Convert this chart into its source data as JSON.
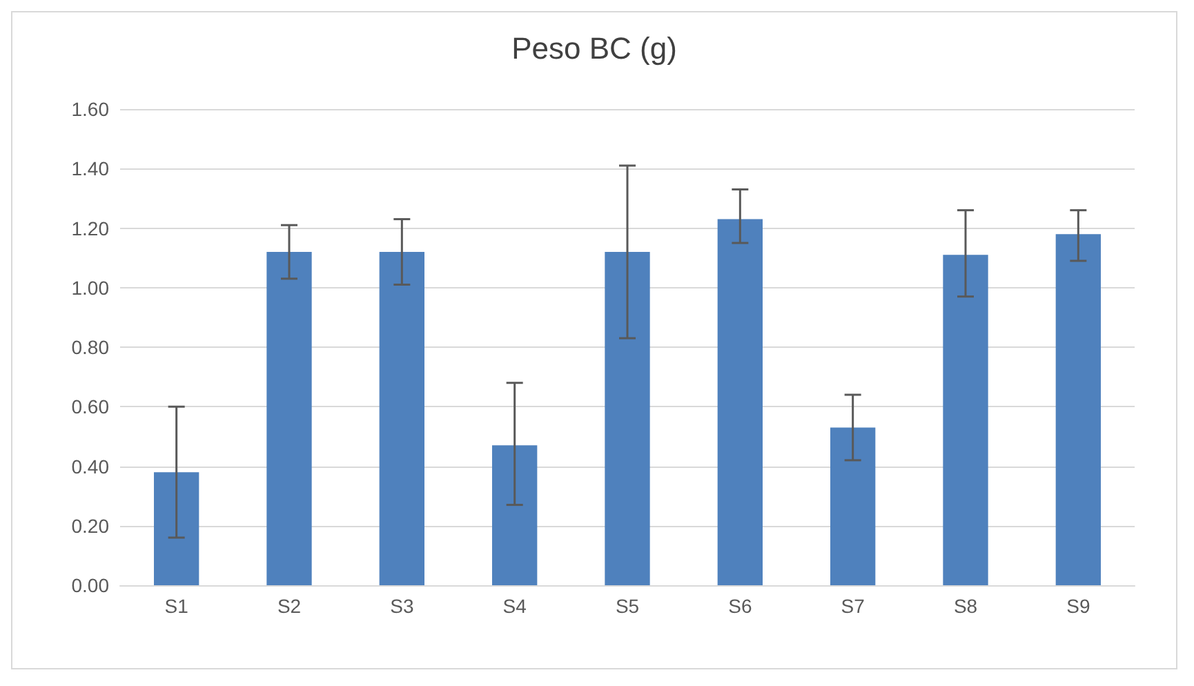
{
  "chart_data": {
    "type": "bar",
    "title": "Peso BC (g)",
    "categories": [
      "S1",
      "S2",
      "S3",
      "S4",
      "S5",
      "S6",
      "S7",
      "S8",
      "S9"
    ],
    "values": [
      0.38,
      1.12,
      1.12,
      0.47,
      1.12,
      1.23,
      0.53,
      1.11,
      1.18
    ],
    "errors": [
      [
        0.16,
        0.6
      ],
      [
        1.03,
        1.21
      ],
      [
        1.01,
        1.23
      ],
      [
        0.27,
        0.68
      ],
      [
        0.83,
        1.41
      ],
      [
        1.15,
        1.33
      ],
      [
        0.42,
        0.64
      ],
      [
        0.97,
        1.26
      ],
      [
        1.09,
        1.26
      ]
    ],
    "color": "#4f81bd",
    "ylim": [
      0,
      1.6
    ],
    "yticks": [
      {
        "value": 0,
        "label": "0.00"
      },
      {
        "value": 0.2,
        "label": "0.20"
      },
      {
        "value": 0.4,
        "label": "0.40"
      },
      {
        "value": 0.6,
        "label": "0.60"
      },
      {
        "value": 0.8,
        "label": "0.80"
      },
      {
        "value": 1.0,
        "label": "1.00"
      },
      {
        "value": 1.2,
        "label": "1.20"
      },
      {
        "value": 1.4,
        "label": "1.40"
      },
      {
        "value": 1.6,
        "label": "1.60"
      }
    ],
    "grid": "y"
  }
}
